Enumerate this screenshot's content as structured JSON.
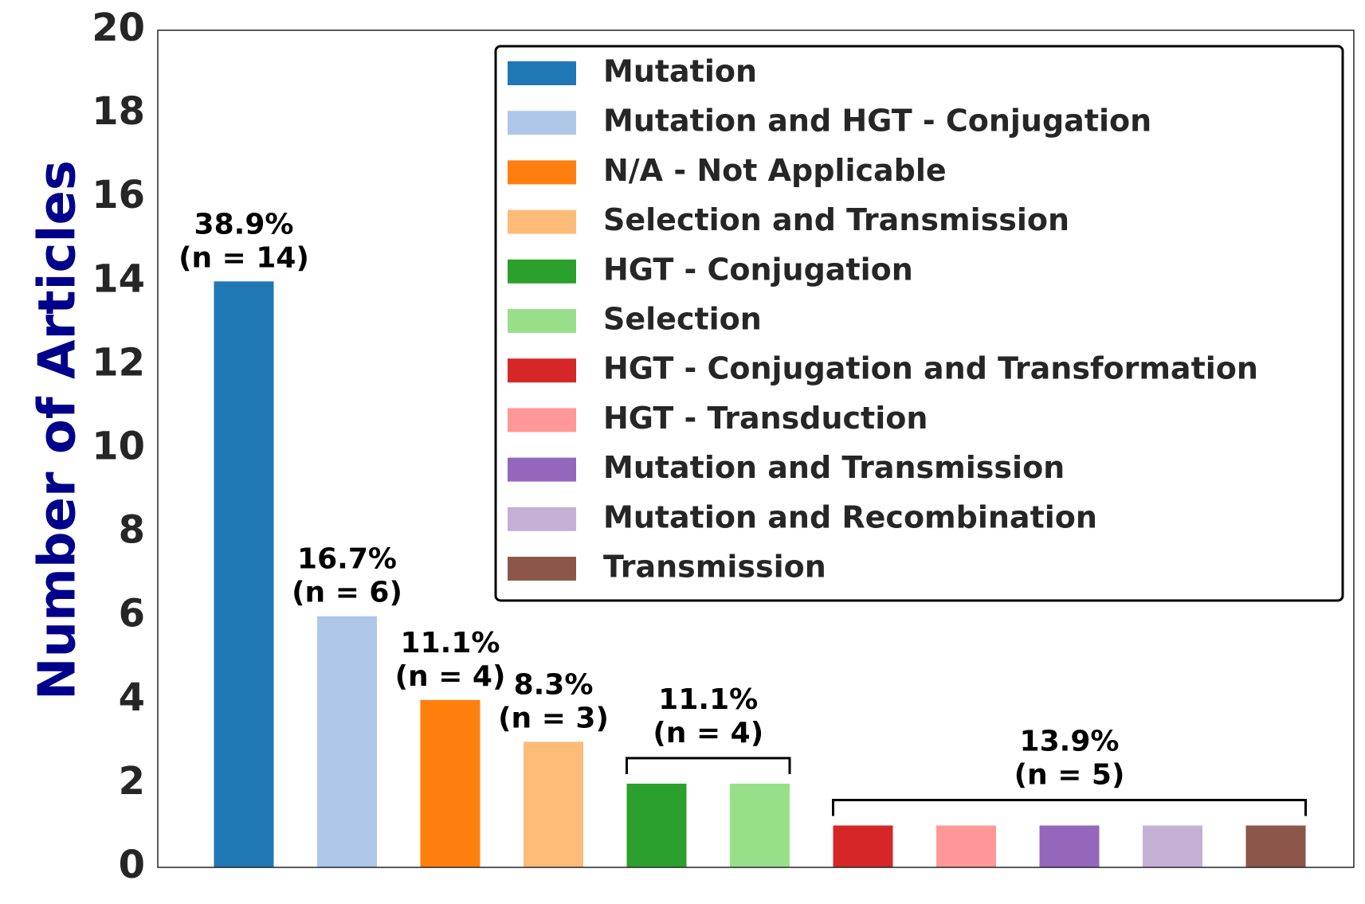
{
  "chart_data": {
    "type": "bar",
    "ylabel": "Number of Articles",
    "xlabel": "",
    "ylim": [
      0,
      20
    ],
    "yticks": [
      0,
      2,
      4,
      6,
      8,
      10,
      12,
      14,
      16,
      18,
      20
    ],
    "grid": false,
    "legend_position": "top-right",
    "categories": [
      "Mutation",
      "Mutation and HGT - Conjugation",
      "N/A - Not Applicable",
      "Selection and Transmission",
      "HGT - Conjugation",
      "Selection",
      "HGT - Conjugation and Transformation",
      "HGT - Transduction",
      "Mutation and Transmission",
      "Mutation and Recombination",
      "Transmission"
    ],
    "values": [
      14,
      6,
      4,
      3,
      2,
      2,
      1,
      1,
      1,
      1,
      1
    ],
    "colors": [
      "#1f77b4",
      "#aec7e8",
      "#ff7f0e",
      "#ffbb78",
      "#2ca02c",
      "#98df8a",
      "#d62728",
      "#ff9896",
      "#9467bd",
      "#c5b0d5",
      "#8c564b"
    ],
    "annotations": [
      {
        "bars": [
          0
        ],
        "percent": "38.9%",
        "count": "(n = 14)",
        "bracket": false
      },
      {
        "bars": [
          1
        ],
        "percent": "16.7%",
        "count": "(n = 6)",
        "bracket": false
      },
      {
        "bars": [
          2
        ],
        "percent": "11.1%",
        "count": "(n = 4)",
        "bracket": false
      },
      {
        "bars": [
          3
        ],
        "percent": "8.3%",
        "count": "(n = 3)",
        "bracket": false
      },
      {
        "bars": [
          4,
          5
        ],
        "percent": "11.1%",
        "count": "(n = 4)",
        "bracket": true
      },
      {
        "bars": [
          6,
          7,
          8,
          9,
          10
        ],
        "percent": "13.9%",
        "count": "(n = 5)",
        "bracket": true
      }
    ]
  }
}
